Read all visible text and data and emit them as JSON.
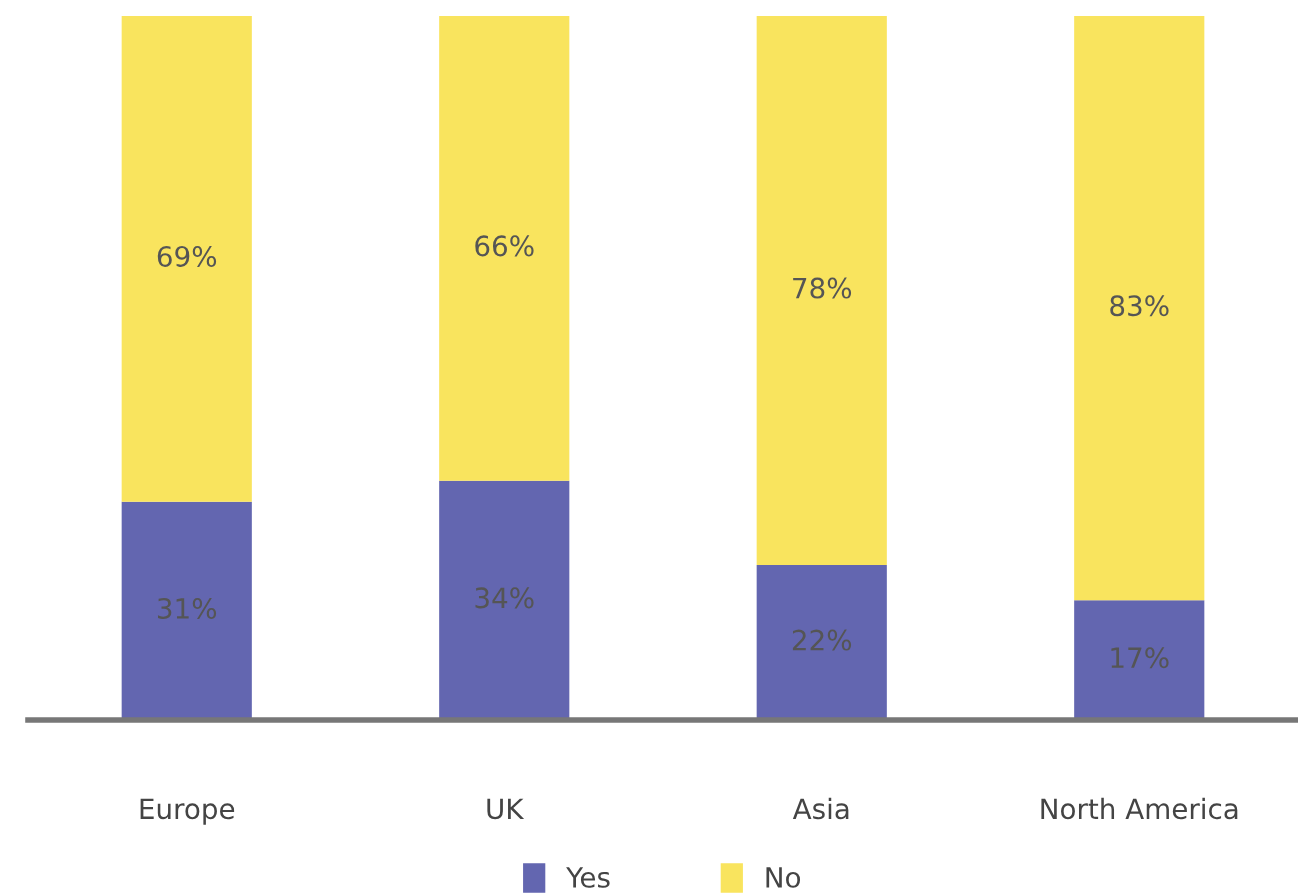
{
  "chart_data": {
    "type": "bar",
    "stacked": true,
    "categories": [
      "Europe",
      "UK",
      "Asia",
      "North America"
    ],
    "series": [
      {
        "name": "Yes",
        "color": "#6366b0",
        "values": [
          31,
          34,
          22,
          17
        ],
        "value_labels": [
          "31%",
          "34%",
          "22%",
          "17%"
        ]
      },
      {
        "name": "No",
        "color": "#f9e45e",
        "values": [
          69,
          66,
          78,
          83
        ],
        "value_labels": [
          "69%",
          "66%",
          "78%",
          "83%"
        ]
      }
    ],
    "legend": "bottom",
    "grid": false
  }
}
